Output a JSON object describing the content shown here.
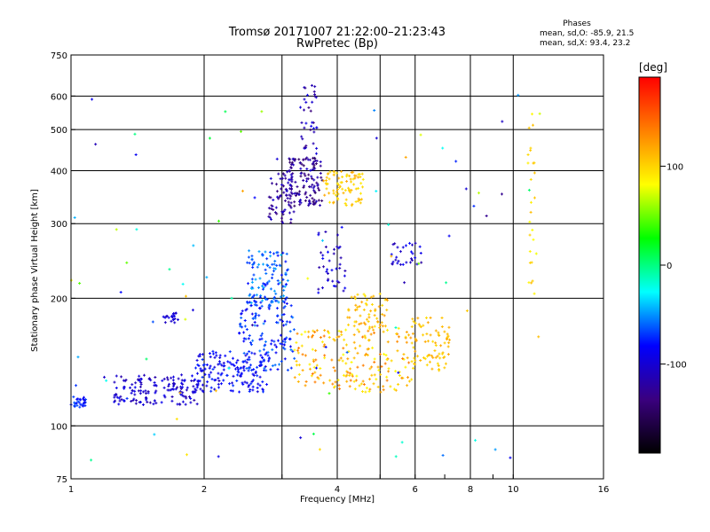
{
  "header": {
    "title_line1": "Tromsø 20171007 21:22:00–21:23:43",
    "title_line2": "RwPretec (Bp)",
    "phases_title": "Phases",
    "phases_o": "mean, sd,O:  -85.9, 21.5",
    "phases_x": "mean, sd,X:  93.4, 23.2"
  },
  "colorbar": {
    "unit": "[deg]",
    "ticks": [
      {
        "value": 100,
        "label": "100"
      },
      {
        "value": 0,
        "label": "0"
      },
      {
        "value": -100,
        "label": "-100"
      }
    ],
    "range": [
      -190,
      190
    ],
    "colormap": [
      "#000000",
      "#3a007f",
      "#0000ff",
      "#00ffff",
      "#00ff00",
      "#ffff00",
      "#ff8000",
      "#ff0000"
    ]
  },
  "chart_data": {
    "type": "scatter",
    "title": "Tromsø 20171007 21:22:00–21:23:43",
    "subtitle": "RwPretec (Bp)",
    "xlabel": "Frequency [MHz]",
    "ylabel": "Stationary phase Virtual Height [km]",
    "x_scale": "log",
    "y_scale": "log",
    "xlim": [
      1,
      16
    ],
    "ylim": [
      75,
      750
    ],
    "grid": true,
    "x_ticks": [
      {
        "value": 1,
        "label": "1",
        "grid": false
      },
      {
        "value": 2,
        "label": "2",
        "grid": true
      },
      {
        "value": 3,
        "label": "",
        "grid": true
      },
      {
        "value": 4,
        "label": "4",
        "grid": true
      },
      {
        "value": 5,
        "label": "",
        "grid": true
      },
      {
        "value": 6,
        "label": "6",
        "grid": true
      },
      {
        "value": 7,
        "label": "",
        "grid": false
      },
      {
        "value": 8,
        "label": "8",
        "grid": true
      },
      {
        "value": 9,
        "label": "",
        "grid": false
      },
      {
        "value": 10,
        "label": "10",
        "grid": true
      },
      {
        "value": 16,
        "label": "16",
        "grid": false
      }
    ],
    "y_ticks": [
      {
        "value": 75,
        "label": "75",
        "grid": false
      },
      {
        "value": 100,
        "label": "100",
        "grid": true
      },
      {
        "value": 200,
        "label": "200",
        "grid": true
      },
      {
        "value": 300,
        "label": "300",
        "grid": true
      },
      {
        "value": 400,
        "label": "400",
        "grid": true
      },
      {
        "value": 500,
        "label": "500",
        "grid": true
      },
      {
        "value": 600,
        "label": "600",
        "grid": true
      },
      {
        "value": 750,
        "label": "750",
        "grid": false
      }
    ],
    "color_value": "phase [deg]",
    "clusters": [
      {
        "x": [
          1.0,
          1.08
        ],
        "y": [
          110,
          118
        ],
        "n": 30,
        "phase": [
          -90,
          -60
        ]
      },
      {
        "x": [
          1.25,
          1.95
        ],
        "y": [
          112,
          132
        ],
        "n": 150,
        "phase": [
          -120,
          -85
        ]
      },
      {
        "x": [
          1.9,
          2.8
        ],
        "y": [
          120,
          150
        ],
        "n": 160,
        "phase": [
          -100,
          -70
        ]
      },
      {
        "x": [
          2.4,
          3.2
        ],
        "y": [
          135,
          200
        ],
        "n": 140,
        "phase": [
          -90,
          -55
        ]
      },
      {
        "x": [
          2.5,
          3.1
        ],
        "y": [
          195,
          260
        ],
        "n": 110,
        "phase": [
          -80,
          -40
        ]
      },
      {
        "x": [
          2.8,
          3.2
        ],
        "y": [
          300,
          400
        ],
        "n": 70,
        "phase": [
          -140,
          -100
        ]
      },
      {
        "x": [
          3.1,
          3.7
        ],
        "y": [
          330,
          430
        ],
        "n": 120,
        "phase": [
          -150,
          -105
        ]
      },
      {
        "x": [
          3.3,
          3.6
        ],
        "y": [
          400,
          640
        ],
        "n": 40,
        "phase": [
          -140,
          -90
        ]
      },
      {
        "x": [
          3.7,
          4.6
        ],
        "y": [
          330,
          400
        ],
        "n": 80,
        "phase": [
          90,
          120
        ]
      },
      {
        "x": [
          3.2,
          5.9
        ],
        "y": [
          120,
          170
        ],
        "n": 200,
        "phase": [
          80,
          140
        ]
      },
      {
        "x": [
          5.8,
          7.2
        ],
        "y": [
          135,
          180
        ],
        "n": 80,
        "phase": [
          95,
          120
        ]
      },
      {
        "x": [
          4.2,
          5.2
        ],
        "y": [
          170,
          205
        ],
        "n": 60,
        "phase": [
          90,
          125
        ]
      },
      {
        "x": [
          3.6,
          4.2
        ],
        "y": [
          200,
          300
        ],
        "n": 40,
        "phase": [
          -120,
          -80
        ]
      },
      {
        "x": [
          5.3,
          6.2
        ],
        "y": [
          240,
          270
        ],
        "n": 30,
        "phase": [
          -120,
          -80
        ]
      },
      {
        "x": [
          1.6,
          1.75
        ],
        "y": [
          175,
          185
        ],
        "n": 20,
        "phase": [
          -110,
          -90
        ]
      },
      {
        "x": [
          10.8,
          11.2
        ],
        "y": [
          200,
          620
        ],
        "n": 25,
        "phase": [
          80,
          110
        ]
      },
      {
        "x": [
          1.0,
          11.5
        ],
        "y": [
          80,
          620
        ],
        "n": 90,
        "phase": [
          -130,
          120
        ]
      }
    ]
  }
}
